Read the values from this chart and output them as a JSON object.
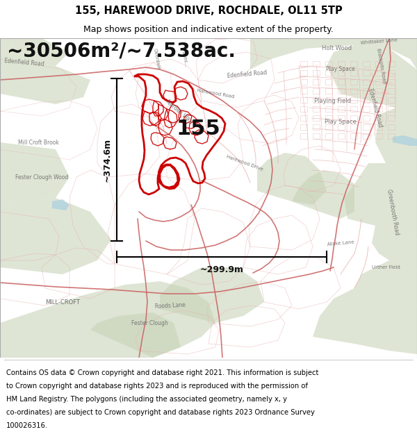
{
  "title_line1": "155, HAREWOOD DRIVE, ROCHDALE, OL11 5TP",
  "title_line2": "Map shows position and indicative extent of the property.",
  "area_text": "~30506m²/~7.538ac.",
  "property_number": "155",
  "dim_horizontal": "~299.9m",
  "dim_vertical": "~374.6m",
  "footer_lines": [
    "Contains OS data © Crown copyright and database right 2021. This information is subject",
    "to Crown copyright and database rights 2023 and is reproduced with the permission of",
    "HM Land Registry. The polygons (including the associated geometry, namely x, y",
    "co-ordinates) are subject to Crown copyright and database rights 2023 Ordnance Survey",
    "100026316."
  ],
  "bg_color": "#ffffff",
  "map_bg": "#f8f4f0",
  "red_color": "#cc0000",
  "pink_color": "#e8b0b0",
  "green_color": "#c8d4b8",
  "title_fontsize": 10.5,
  "subtitle_fontsize": 9,
  "area_fontsize": 20,
  "number_fontsize": 22,
  "dim_fontsize": 9,
  "footer_fontsize": 7.2,
  "map_label_fontsize": 6.5,
  "map_label_color": "#666666"
}
